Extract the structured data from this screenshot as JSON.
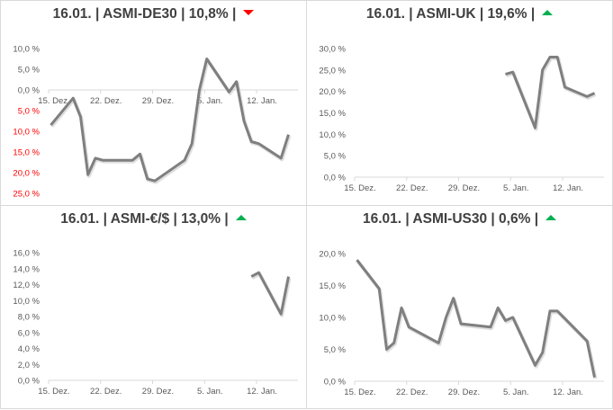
{
  "panels": [
    {
      "id": "de30",
      "title": "16.01. | ASMI-DE30 | 10,8% |",
      "trend": "down",
      "trend_icon": "triangle-down-icon",
      "trend_color": "#ff0000"
    },
    {
      "id": "uk",
      "title": "16.01. | ASMI-UK | 19,6% |",
      "trend": "up",
      "trend_icon": "triangle-up-icon",
      "trend_color": "#00b050"
    },
    {
      "id": "eurusd",
      "title": "16.01. | ASMI-€/$ | 13,0% |",
      "trend": "up",
      "trend_icon": "triangle-up-icon",
      "trend_color": "#00b050"
    },
    {
      "id": "us30",
      "title": "16.01. | ASMI-US30 | 0,6% |",
      "trend": "up",
      "trend_icon": "triangle-up-icon",
      "trend_color": "#00b050"
    }
  ],
  "colors": {
    "line": "#7f7f7f",
    "axis_text": "#595959",
    "negative_text": "#ff0000",
    "axis_line": "#d9d9d9",
    "title_text": "#404040"
  },
  "chart_data": [
    {
      "type": "line",
      "title": "16.01. | ASMI-DE30 | 10,8% |",
      "x_tick_labels": [
        "15. Dez.",
        "22. Dez.",
        "29. Dez.",
        "5. Jan.",
        "12. Jan."
      ],
      "y_tick_labels": [
        "10,0 %",
        "5,0 %",
        "0,0 %",
        "5,0 %",
        "10,0 %",
        "15,0 %",
        "20,0 %",
        "25,0 %"
      ],
      "y_tick_values": [
        10,
        5,
        0,
        -5,
        -10,
        -15,
        -20,
        -25
      ],
      "negative_labels_red": true,
      "ylim": [
        -25,
        10
      ],
      "xlabel": "",
      "ylabel": "",
      "grid": false,
      "x": [
        "15.12",
        "18.12",
        "19.12",
        "20.12",
        "21.12",
        "22.12",
        "26.12",
        "27.12",
        "28.12",
        "29.12",
        "02.01",
        "03.01",
        "04.01",
        "05.01",
        "08.01",
        "09.01",
        "10.01",
        "11.01",
        "12.01",
        "15.01",
        "16.01"
      ],
      "day_offsets": [
        0.3,
        3.3,
        4.3,
        5.3,
        6.3,
        7.3,
        11.3,
        12.3,
        13.3,
        14.3,
        18.3,
        19.3,
        20.3,
        21.3,
        24.3,
        25.3,
        26.3,
        27.3,
        28.3,
        31.3,
        32.3
      ],
      "values": [
        -8.5,
        -2.0,
        -6.5,
        -20.5,
        -16.5,
        -17.0,
        -17.0,
        -15.5,
        -21.5,
        -22.0,
        -17.0,
        -13.0,
        0.0,
        7.5,
        -0.5,
        2.0,
        -7.5,
        -12.5,
        -13.0,
        -16.5,
        -10.8
      ]
    },
    {
      "type": "line",
      "title": "16.01. | ASMI-UK | 19,6% |",
      "x_tick_labels": [
        "15. Dez.",
        "22. Dez.",
        "29. Dez.",
        "5. Jan.",
        "12. Jan."
      ],
      "y_tick_labels": [
        "30,0 %",
        "25,0 %",
        "20,0 %",
        "15,0 %",
        "10,0 %",
        "5,0 %",
        "0,0 %"
      ],
      "y_tick_values": [
        30,
        25,
        20,
        15,
        10,
        5,
        0
      ],
      "ylim": [
        0,
        30
      ],
      "xlabel": "",
      "ylabel": "",
      "grid": false,
      "x": [
        "04.01",
        "05.01",
        "08.01",
        "09.01",
        "10.01",
        "11.01",
        "12.01",
        "15.01",
        "16.01"
      ],
      "day_offsets": [
        20.3,
        21.3,
        24.3,
        25.3,
        26.3,
        27.3,
        28.3,
        31.3,
        32.3
      ],
      "values": [
        24.0,
        24.5,
        11.5,
        25.0,
        28.0,
        28.0,
        21.0,
        18.8,
        19.6
      ]
    },
    {
      "type": "line",
      "title": "16.01. | ASMI-€/$ | 13,0% |",
      "x_tick_labels": [
        "15. Dez.",
        "22. Dez.",
        "29. Dez.",
        "5. Jan.",
        "12. Jan."
      ],
      "y_tick_labels": [
        "16,0 %",
        "14,0 %",
        "12,0 %",
        "10,0 %",
        "8,0 %",
        "6,0 %",
        "4,0 %",
        "2,0 %",
        "0,0 %"
      ],
      "y_tick_values": [
        16,
        14,
        12,
        10,
        8,
        6,
        4,
        2,
        0
      ],
      "ylim": [
        0,
        16
      ],
      "xlabel": "",
      "ylabel": "",
      "grid": false,
      "x": [
        "11.01",
        "12.01",
        "15.01",
        "16.01"
      ],
      "day_offsets": [
        27.3,
        28.3,
        31.3,
        32.3
      ],
      "values": [
        13.0,
        13.5,
        8.3,
        13.0
      ]
    },
    {
      "type": "line",
      "title": "16.01. | ASMI-US30 | 0,6% |",
      "x_tick_labels": [
        "15. Dez.",
        "22. Dez.",
        "29. Dez.",
        "5. Jan.",
        "12. Jan."
      ],
      "y_tick_labels": [
        "20,0 %",
        "15,0 %",
        "10,0 %",
        "5,0 %",
        "0,0 %"
      ],
      "y_tick_values": [
        20,
        15,
        10,
        5,
        0
      ],
      "ylim": [
        0,
        20
      ],
      "xlabel": "",
      "ylabel": "",
      "grid": false,
      "x": [
        "15.12",
        "18.12",
        "19.12",
        "20.12",
        "21.12",
        "22.12",
        "26.12",
        "27.12",
        "28.12",
        "29.12",
        "02.01",
        "03.01",
        "04.01",
        "05.01",
        "08.01",
        "09.01",
        "10.01",
        "11.01",
        "15.01",
        "16.01"
      ],
      "day_offsets": [
        0.3,
        3.3,
        4.3,
        5.3,
        6.3,
        7.3,
        11.3,
        12.3,
        13.3,
        14.3,
        18.3,
        19.3,
        20.3,
        21.3,
        24.3,
        25.3,
        26.3,
        27.3,
        31.3,
        32.3
      ],
      "values": [
        19.0,
        14.5,
        5.0,
        6.0,
        11.5,
        8.5,
        6.0,
        10.0,
        13.0,
        9.0,
        8.5,
        11.5,
        9.5,
        10.0,
        2.5,
        4.5,
        11.0,
        11.0,
        6.3,
        0.6
      ]
    }
  ]
}
